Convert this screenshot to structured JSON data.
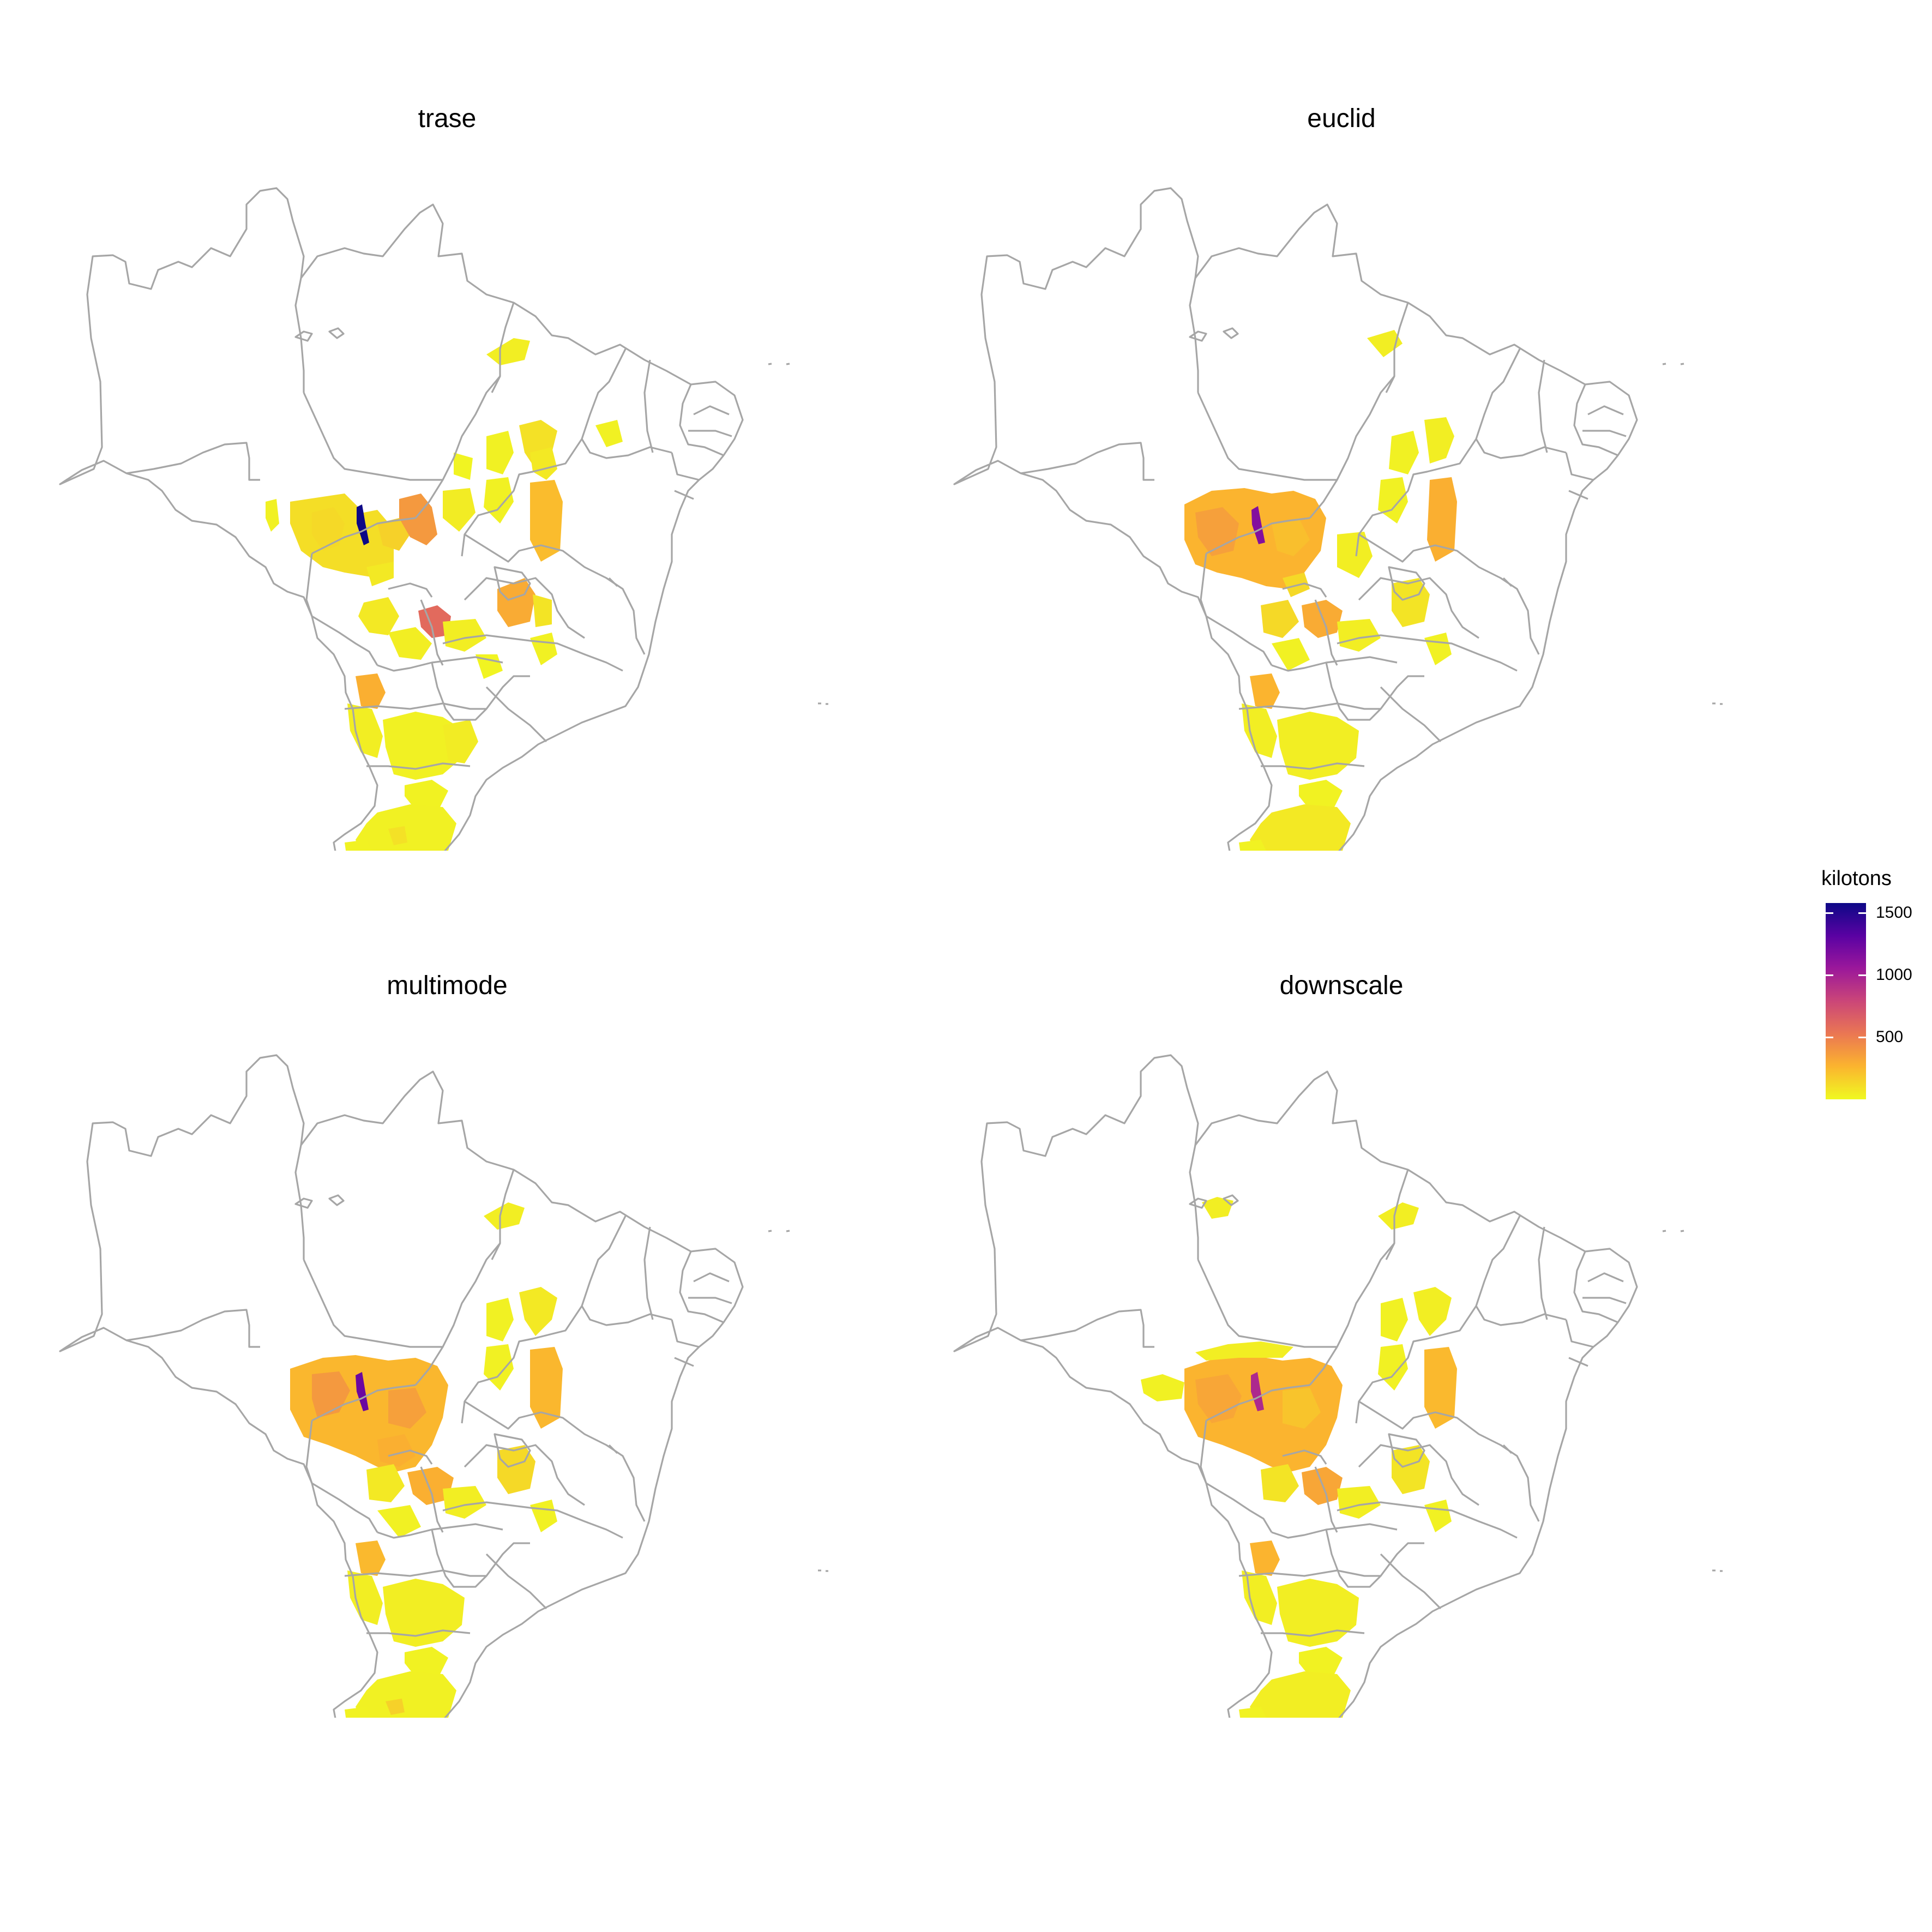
{
  "panels": [
    {
      "id": "trase",
      "title": "trase"
    },
    {
      "id": "euclid",
      "title": "euclid"
    },
    {
      "id": "multimode",
      "title": "multimode"
    },
    {
      "id": "downscale",
      "title": "downscale"
    }
  ],
  "legend": {
    "title": "kilotons",
    "ticks": [
      {
        "label": "1500",
        "value": 1500
      },
      {
        "label": "1000",
        "value": 1000
      },
      {
        "label": "500",
        "value": 500
      }
    ],
    "range": [
      0,
      1580
    ],
    "palette": [
      "#0d0887",
      "#5b02a3",
      "#9a179b",
      "#cb4678",
      "#eb7852",
      "#fbb32f",
      "#f0f921"
    ]
  },
  "colors": {
    "border": "#a6a6a6",
    "background": "#ffffff"
  }
}
